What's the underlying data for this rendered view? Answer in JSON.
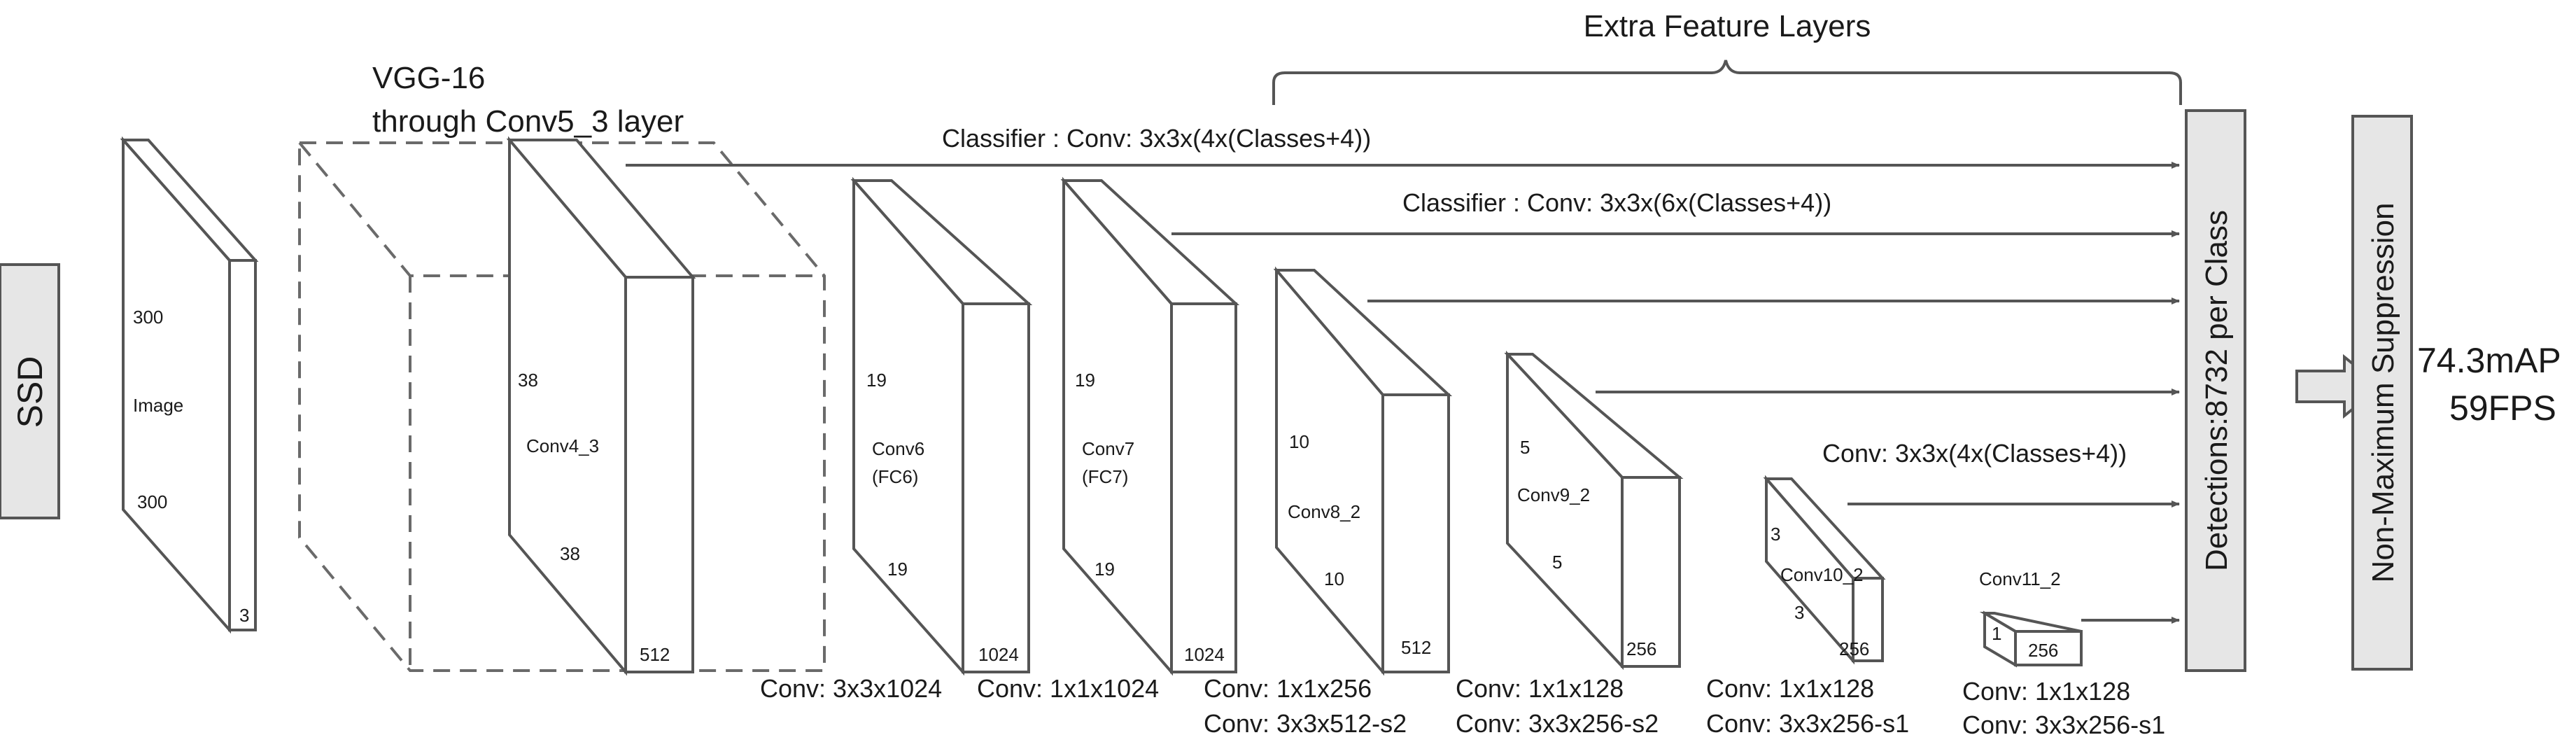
{
  "title": "Extra Feature Layers",
  "ssd_label": "SSD",
  "vgg_label": {
    "line1": "VGG-16",
    "line2": "through Conv5_3 layer"
  },
  "input_layer": {
    "label": "Image",
    "height": "300",
    "width": "300",
    "channels": "3"
  },
  "layers": [
    {
      "id": "conv4_3",
      "name": "Conv4_3",
      "sub": "",
      "height": "38",
      "width": "38",
      "channels": "512",
      "conv_lines": []
    },
    {
      "id": "conv6",
      "name": "Conv6",
      "sub": "(FC6)",
      "height": "19",
      "width": "19",
      "channels": "1024",
      "conv_lines": [
        "Conv: 3x3x1024"
      ]
    },
    {
      "id": "conv7",
      "name": "Conv7",
      "sub": "(FC7)",
      "height": "19",
      "width": "19",
      "channels": "1024",
      "conv_lines": [
        "Conv: 1x1x1024"
      ]
    },
    {
      "id": "conv8_2",
      "name": "Conv8_2",
      "sub": "",
      "height": "10",
      "width": "10",
      "channels": "512",
      "conv_lines": [
        "Conv: 1x1x256",
        "Conv:  3x3x512-s2"
      ]
    },
    {
      "id": "conv9_2",
      "name": "Conv9_2",
      "sub": "",
      "height": "5",
      "width": "5",
      "channels": "256",
      "conv_lines": [
        "Conv: 1x1x128",
        "Conv: 3x3x256-s2"
      ]
    },
    {
      "id": "conv10_2",
      "name": "Conv10_2",
      "sub": "",
      "height": "3",
      "width": "3",
      "channels": "256",
      "conv_lines": [
        "Conv: 1x1x128",
        "Conv: 3x3x256-s1"
      ]
    },
    {
      "id": "conv11_2",
      "name": "Conv11_2",
      "sub": "",
      "height": "1",
      "width": "",
      "channels": "256",
      "conv_lines": [
        "Conv: 1x1x128",
        "Conv: 3x3x256-s1"
      ]
    }
  ],
  "classifiers": [
    "Classifier : Conv: 3x3x(4x(Classes+4))",
    "Classifier : Conv: 3x3x(6x(Classes+4))",
    "Conv: 3x3x(4x(Classes+4))"
  ],
  "detections_label": "Detections:8732  per Class",
  "nms_label": "Non-Maximum Suppression",
  "results": {
    "map": "74.3mAP",
    "fps": "59FPS"
  }
}
